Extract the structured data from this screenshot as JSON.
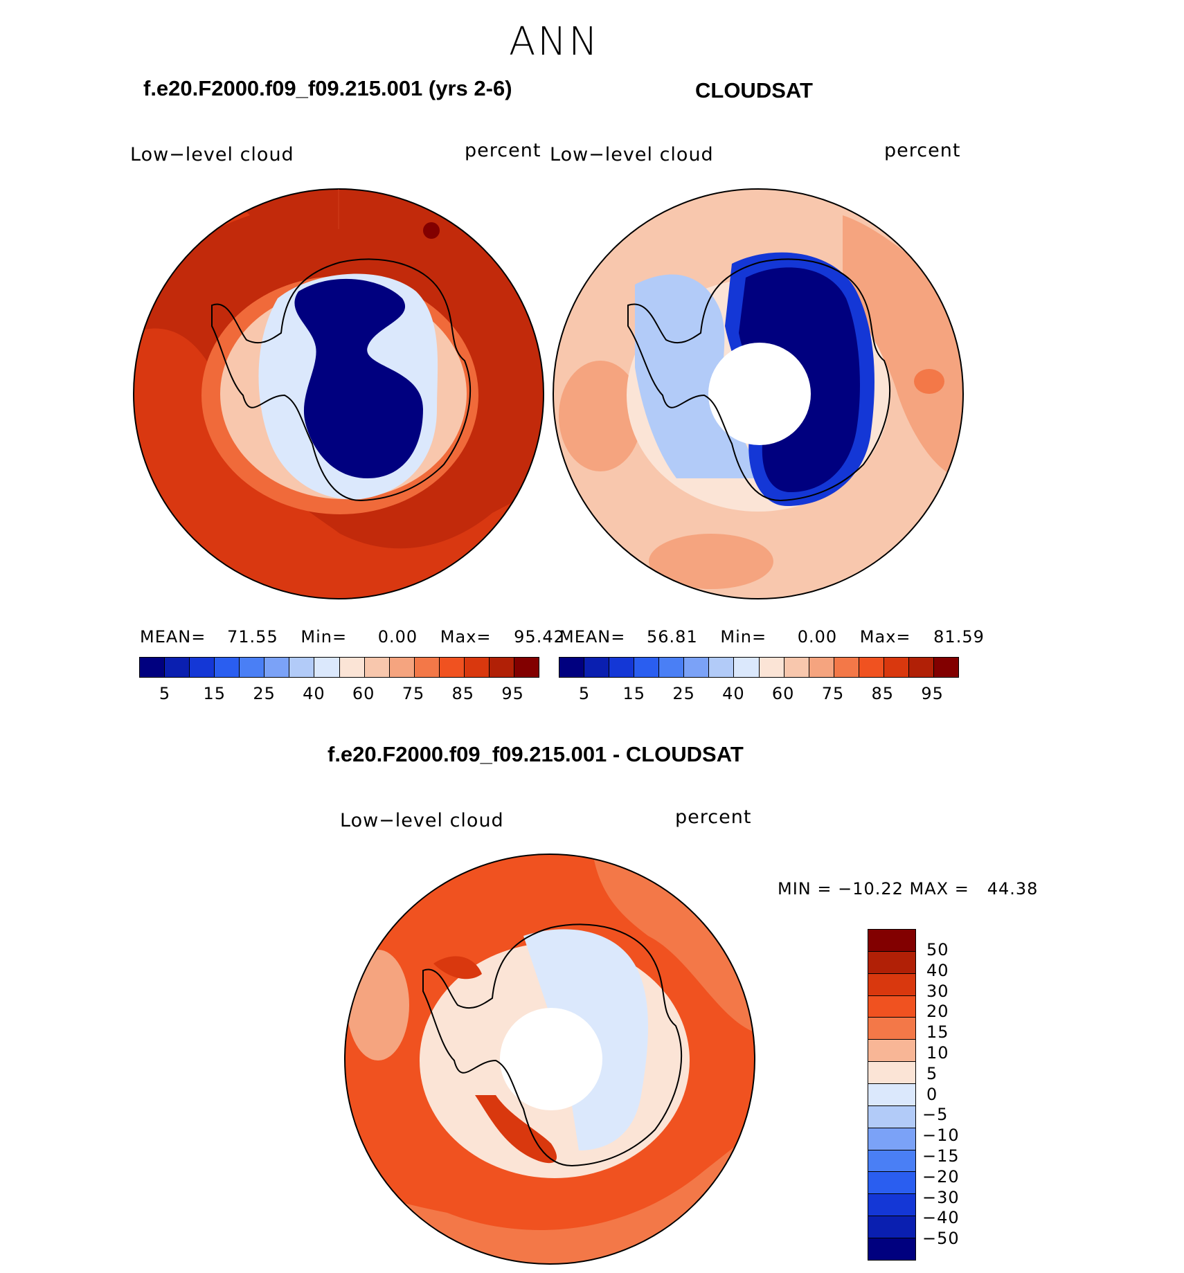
{
  "page_title": "ANN",
  "panels": [
    {
      "title": "f.e20.F2000.f09_f09.215.001 (yrs 2-6)",
      "variable": "Low−level cloud",
      "units": "percent",
      "stats": {
        "mean_label": "MEAN=",
        "mean": "71.55",
        "min_label": "Min=",
        "min": "0.00",
        "max_label": "Max=",
        "max": "95.42"
      }
    },
    {
      "title": "CLOUDSAT",
      "variable": "Low−level cloud",
      "units": "percent",
      "stats": {
        "mean_label": "MEAN=",
        "mean": "56.81",
        "min_label": "Min=",
        "min": "0.00",
        "max_label": "Max=",
        "max": "81.59"
      }
    },
    {
      "title": "f.e20.F2000.f09_f09.215.001 - CLOUDSAT",
      "variable": "Low−level cloud",
      "units": "percent",
      "minmax": "MIN = −10.22 MAX =   44.38"
    }
  ],
  "abs_colorbar": {
    "colors": [
      "#00007f",
      "#0a1fb0",
      "#1437d6",
      "#2a5ef0",
      "#4a7ff5",
      "#7ba2f7",
      "#b2cbf8",
      "#dbe8fc",
      "#fbe4d6",
      "#f8c7ad",
      "#f5a47f",
      "#f37848",
      "#f05220",
      "#d9380e",
      "#b12006",
      "#820000"
    ],
    "tick_labels": [
      "5",
      "15",
      "25",
      "40",
      "60",
      "75",
      "85",
      "95"
    ]
  },
  "diff_colorbar": {
    "colors": [
      "#820000",
      "#b12006",
      "#d9380e",
      "#f05220",
      "#f37848",
      "#f8b696",
      "#fbe4d6",
      "#dbe8fc",
      "#b2cbf8",
      "#7ba2f7",
      "#4a7ff5",
      "#2a5ef0",
      "#1437d6",
      "#0a1fb0",
      "#00007f"
    ],
    "tick_labels": [
      "50",
      "40",
      "30",
      "20",
      "15",
      "10",
      "5",
      "0",
      "−5",
      "−10",
      "−15",
      "−20",
      "−30",
      "−40",
      "−50"
    ]
  },
  "map_colors": {
    "panel1_ocean": "#c22a0b",
    "panel1_band": "#dc3a12",
    "panel1_coast": "#f06a3a",
    "panel1_interior": "#00007f",
    "panel2_ocean": "#f8c7ad",
    "panel2_band": "#f37848",
    "panel2_interior": "#00007f",
    "panel3_ocean": "#f05220",
    "panel3_band": "#f37848",
    "panel3_interior": "#dbe8fc",
    "coastline": "#000000"
  }
}
